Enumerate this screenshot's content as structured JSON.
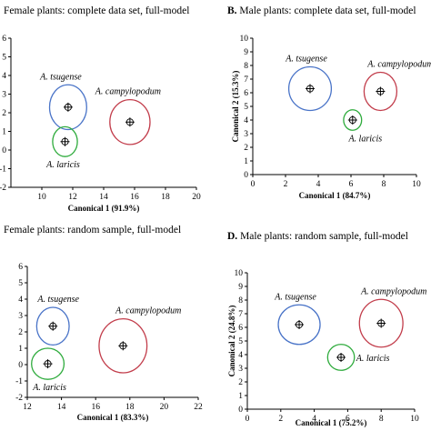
{
  "chart_data": [
    {
      "type": "scatter",
      "panel": "",
      "title": "Female plants: complete data set, full-model",
      "xlabel": "Canonical 1 (91.9%)",
      "ylabel": "",
      "xlim": [
        8,
        20
      ],
      "ylim": [
        -2,
        6
      ],
      "xticks": [
        10,
        12,
        14,
        16,
        18,
        20
      ],
      "yticks": [
        -2,
        -1,
        0,
        1,
        2,
        3,
        4,
        5,
        6
      ],
      "series": [
        {
          "name": "A. tsugense",
          "x": 11.7,
          "y": 2.3,
          "rx": 1.2,
          "ry": 1.2,
          "color": "#4a74c8"
        },
        {
          "name": "A. campylopodum",
          "x": 15.7,
          "y": 1.5,
          "rx": 1.3,
          "ry": 1.2,
          "color": "#c23d4b"
        },
        {
          "name": "A. laricis",
          "x": 11.5,
          "y": 0.45,
          "rx": 0.8,
          "ry": 0.8,
          "color": "#2eab3c"
        }
      ]
    },
    {
      "type": "scatter",
      "panel": "B.",
      "title": "Male plants: complete data set, full-model",
      "xlabel": "Canonical 1 (84.7%)",
      "ylabel": "Canonical 2 (15.3%)",
      "xlim": [
        0,
        10
      ],
      "ylim": [
        0,
        10
      ],
      "xticks": [
        0,
        2,
        4,
        6,
        8,
        10
      ],
      "yticks": [
        0,
        1,
        2,
        3,
        4,
        5,
        6,
        7,
        8,
        9,
        10
      ],
      "series": [
        {
          "name": "A. tsugense",
          "x": 3.5,
          "y": 6.3,
          "rx": 1.3,
          "ry": 1.6,
          "color": "#4a74c8"
        },
        {
          "name": "A. campylopodum",
          "x": 7.8,
          "y": 6.1,
          "rx": 1.0,
          "ry": 1.4,
          "color": "#c23d4b"
        },
        {
          "name": "A. laricis",
          "x": 6.1,
          "y": 4.0,
          "rx": 0.55,
          "ry": 0.75,
          "color": "#2eab3c"
        }
      ]
    },
    {
      "type": "scatter",
      "panel": "",
      "title": "Female plants: random sample, full-model",
      "xlabel": "Canonical 1 (83.3%)",
      "ylabel": "",
      "xlim": [
        12,
        22
      ],
      "ylim": [
        -2,
        6
      ],
      "xticks": [
        12,
        14,
        16,
        18,
        20,
        22
      ],
      "yticks": [
        -2,
        -1,
        0,
        1,
        2,
        3,
        4,
        5,
        6
      ],
      "series": [
        {
          "name": "A. tsugense",
          "x": 13.5,
          "y": 2.35,
          "rx": 0.95,
          "ry": 1.15,
          "color": "#4a74c8"
        },
        {
          "name": "A. campylopodum",
          "x": 17.6,
          "y": 1.15,
          "rx": 1.4,
          "ry": 1.65,
          "color": "#c23d4b"
        },
        {
          "name": "A. laricis",
          "x": 13.2,
          "y": 0.05,
          "rx": 0.95,
          "ry": 0.95,
          "color": "#2eab3c"
        }
      ]
    },
    {
      "type": "scatter",
      "panel": "D.",
      "title": "Male plants: random sample, full-model",
      "xlabel": "Canonical 1 (75.2%)",
      "ylabel": "Canonical 2 (24.8%)",
      "xlim": [
        0,
        10
      ],
      "ylim": [
        0,
        10
      ],
      "xticks": [
        0,
        2,
        4,
        6,
        8,
        10
      ],
      "yticks": [
        0,
        1,
        2,
        3,
        4,
        5,
        6,
        7,
        8,
        9,
        10
      ],
      "series": [
        {
          "name": "A. tsugense",
          "x": 3.1,
          "y": 6.2,
          "rx": 1.25,
          "ry": 1.45,
          "color": "#4a74c8"
        },
        {
          "name": "A. campylopodum",
          "x": 8.0,
          "y": 6.3,
          "rx": 1.3,
          "ry": 1.75,
          "color": "#c23d4b"
        },
        {
          "name": "A. laricis",
          "x": 5.6,
          "y": 3.8,
          "rx": 0.8,
          "ry": 0.95,
          "color": "#2eab3c"
        }
      ]
    }
  ]
}
